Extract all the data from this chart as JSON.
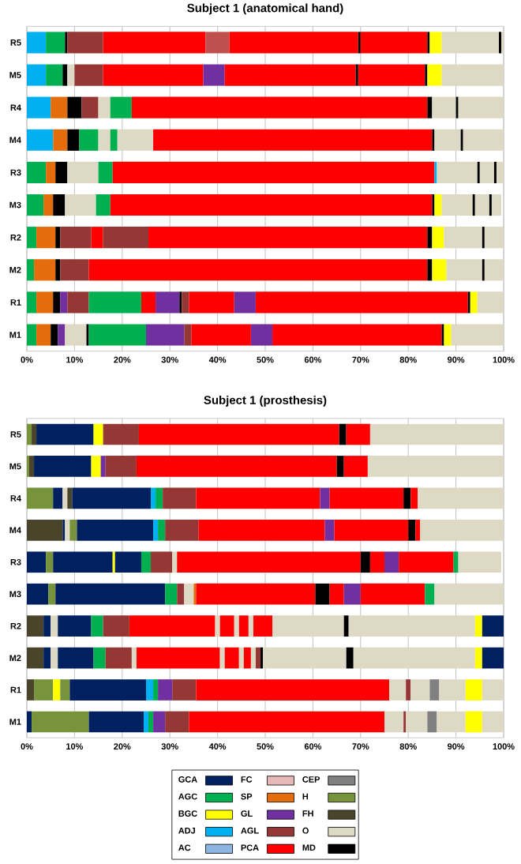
{
  "chart_data": [
    {
      "type": "bar",
      "orientation": "horizontal",
      "stacked": true,
      "title": "Subject 1 (anatomical hand)",
      "categories": [
        "R5",
        "M5",
        "R4",
        "M4",
        "R3",
        "M3",
        "R2",
        "M2",
        "R1",
        "M1"
      ],
      "xlim": [
        0,
        100
      ],
      "xticks": [
        {
          "value": 0,
          "label": "0%"
        },
        {
          "value": 10,
          "label": "10%"
        },
        {
          "value": 20,
          "label": "20%"
        },
        {
          "value": 30,
          "label": "30%"
        },
        {
          "value": 40,
          "label": "40%"
        },
        {
          "value": 50,
          "label": "50%"
        },
        {
          "value": 60,
          "label": "60%"
        },
        {
          "value": 70,
          "label": "70%"
        },
        {
          "value": 80,
          "label": "80%"
        },
        {
          "value": 90,
          "label": "90%"
        },
        {
          "value": 100,
          "label": "100%"
        }
      ],
      "grid": "x",
      "series": [
        {
          "values": [
            4,
            4,
            5,
            5.5,
            4,
            3.5,
            2,
            1.5,
            2,
            2
          ],
          "colors": [
            "#00b0f0",
            "#00b0f0",
            "#00b0f0",
            "#00b0f0",
            "#00b050",
            "#00b050",
            "#00b050",
            "#00b050",
            "#00b050",
            "#00b050"
          ]
        },
        {
          "values": [
            4,
            3.5,
            3.5,
            3,
            2,
            2,
            4,
            4.5,
            3.5,
            3
          ],
          "colors": [
            "#00b050",
            "#00b050",
            "#e46c0a",
            "#e46c0a",
            "#e46c0a",
            "#e46c0a",
            "#e46c0a",
            "#e46c0a",
            "#e46c0a",
            "#e46c0a"
          ]
        },
        {
          "values": [
            0.5,
            1,
            3,
            2.5,
            2.5,
            2.5,
            1,
            1,
            1.5,
            1.5
          ],
          "colors": [
            "#000000",
            "#000000",
            "#000000",
            "#000000",
            "#000000",
            "#000000",
            "#000000",
            "#000000",
            "#000000",
            "#000000"
          ]
        },
        {
          "values": [
            7.5,
            1.5,
            3.5,
            4,
            6.5,
            6.5,
            6.5,
            6,
            1.5,
            1.5
          ],
          "colors": [
            "#953735",
            "#ddd9c4",
            "#953735",
            "#00b050",
            "#ddd9c4",
            "#ddd9c4",
            "#953735",
            "#953735",
            "#7030a0",
            "#7030a0"
          ]
        },
        {
          "values": [
            21.5,
            6,
            2.5,
            2.5,
            3,
            3,
            2.5,
            71,
            4.5,
            4.5
          ],
          "colors": [
            "#ff0000",
            "#953735",
            "#ddd9c4",
            "#ddd9c4",
            "#00b050",
            "#00b050",
            "#ff0000",
            "#ff0000",
            "#953735",
            "#ddd9c4"
          ]
        },
        {
          "values": [
            5,
            21,
            4.5,
            1.5,
            67.5,
            67.5,
            9.5,
            1,
            11,
            0.5
          ],
          "colors": [
            "#c0504d",
            "#ff0000",
            "#00b050",
            "#00b050",
            "#ff0000",
            "#ff0000",
            "#953735",
            "#000000",
            "#00b050",
            "#000000"
          ]
        },
        {
          "values": [
            27,
            4.5,
            62,
            7.5,
            0.5,
            0.5,
            58.5,
            3,
            3,
            12
          ],
          "colors": [
            "#ff0000",
            "#7030a0",
            "#ff0000",
            "#ddd9c4",
            "#00b0f0",
            "#000000",
            "#ff0000",
            "#ffff00",
            "#ff0000",
            "#00b050"
          ]
        },
        {
          "values": [
            0.5,
            27.5,
            1,
            58.5,
            8.5,
            1.5,
            1,
            7.5,
            5,
            8
          ],
          "colors": [
            "#000000",
            "#ff0000",
            "#000000",
            "#ff0000",
            "#ddd9c4",
            "#ffff00",
            "#000000",
            "#ddd9c4",
            "#7030a0",
            "#7030a0"
          ]
        },
        {
          "values": [
            14,
            0.5,
            5,
            0.5,
            0.5,
            6.5,
            2.5,
            0.5,
            0.5,
            1.5
          ],
          "colors": [
            "#ff0000",
            "#000000",
            "#ddd9c4",
            "#000000",
            "#000000",
            "#ddd9c4",
            "#ffff00",
            "#000000",
            "#000000",
            "#953735"
          ]
        },
        {
          "values": [
            0.5,
            14,
            0.5,
            5.5,
            3,
            0.5,
            8,
            4,
            1.5,
            12.5
          ],
          "colors": [
            "#000000",
            "#ff0000",
            "#000000",
            "#ddd9c4",
            "#ddd9c4",
            "#000000",
            "#ddd9c4",
            "#ddd9c4",
            "#953735",
            "#ff0000"
          ]
        },
        {
          "values": [
            2.5,
            0.5,
            9.5,
            0.5,
            0.5,
            3,
            0.5,
            null,
            9.5,
            4.5
          ],
          "colors": [
            "#ffff00",
            "#000000",
            "#ddd9c4",
            "#000000",
            "#000000",
            "#ddd9c4",
            "#000000",
            null,
            "#ff0000",
            "#7030a0"
          ]
        },
        {
          "values": [
            12,
            3,
            null,
            8.5,
            1.5,
            0.5,
            4,
            null,
            4.5,
            35.5
          ],
          "colors": [
            "#ddd9c4",
            "#ffff00",
            null,
            "#ddd9c4",
            "#ddd9c4",
            "#000000",
            "#ddd9c4",
            null,
            "#7030a0",
            "#ff0000"
          ]
        },
        {
          "values": [
            0.5,
            13,
            null,
            null,
            null,
            2,
            null,
            null,
            44.5,
            0.5
          ],
          "colors": [
            "#000000",
            "#ddd9c4",
            null,
            null,
            null,
            "#ddd9c4",
            null,
            null,
            "#ff0000",
            "#000000"
          ]
        },
        {
          "values": [
            0.5,
            null,
            null,
            null,
            null,
            null,
            null,
            null,
            0.5,
            1.5
          ],
          "colors": [
            "#ddd9c4",
            null,
            null,
            null,
            null,
            null,
            null,
            null,
            "#000000",
            "#ffff00"
          ]
        },
        {
          "values": [
            null,
            null,
            null,
            null,
            null,
            null,
            null,
            null,
            1.5,
            11
          ],
          "colors": [
            null,
            null,
            null,
            null,
            null,
            null,
            null,
            null,
            "#ffff00",
            "#ddd9c4"
          ]
        },
        {
          "values": [
            null,
            null,
            null,
            null,
            null,
            null,
            null,
            null,
            5.5,
            null
          ],
          "colors": [
            null,
            null,
            null,
            null,
            null,
            null,
            null,
            null,
            "#ddd9c4",
            null
          ]
        }
      ]
    },
    {
      "type": "bar",
      "orientation": "horizontal",
      "stacked": true,
      "title": "Subject 1 (prosthesis)",
      "categories": [
        "R5",
        "M5",
        "R4",
        "M4",
        "R3",
        "M3",
        "R2",
        "M2",
        "R1",
        "M1"
      ],
      "xlim": [
        0,
        100
      ],
      "xticks": [
        {
          "value": 0,
          "label": "0%"
        },
        {
          "value": 10,
          "label": "10%"
        },
        {
          "value": 20,
          "label": "20%"
        },
        {
          "value": 30,
          "label": "30%"
        },
        {
          "value": 40,
          "label": "40%"
        },
        {
          "value": 50,
          "label": "50%"
        },
        {
          "value": 60,
          "label": "60%"
        },
        {
          "value": 70,
          "label": "70%"
        },
        {
          "value": 80,
          "label": "80%"
        },
        {
          "value": 90,
          "label": "90%"
        },
        {
          "value": 100,
          "label": "100%"
        }
      ],
      "grid": "x",
      "legend": "bottom",
      "series": [
        {
          "values": [
            1,
            0.5,
            5.5,
            7.5,
            4,
            4.5,
            3.5,
            3.5,
            1.5,
            1
          ],
          "colors": [
            "#77933c",
            "#77933c",
            "#77933c",
            "#4a452a",
            "#002060",
            "#002060",
            "#4a452a",
            "#4a452a",
            "#4a452a",
            "#002060"
          ]
        },
        {
          "values": [
            1,
            1,
            2,
            0.5,
            1.5,
            1.5,
            1.5,
            1.5,
            4,
            12
          ],
          "colors": [
            "#4a452a",
            "#4a452a",
            "#002060",
            "#002060",
            "#77933c",
            "#77933c",
            "#002060",
            "#002060",
            "#77933c",
            "#77933c"
          ]
        },
        {
          "values": [
            12,
            12,
            1,
            1,
            12.5,
            23,
            1.5,
            1.5,
            1.5,
            11.5
          ],
          "colors": [
            "#002060",
            "#002060",
            "#ddd9c4",
            "#ddd9c4",
            "#002060",
            "#002060",
            "#ddd9c4",
            "#ddd9c4",
            "#ffff00",
            "#002060"
          ]
        },
        {
          "values": [
            2,
            2,
            1,
            1.5,
            0.5,
            2.5,
            7,
            7.5,
            2,
            1
          ],
          "colors": [
            "#ffff00",
            "#ffff00",
            "#4a452a",
            "#77933c",
            "#ffff00",
            "#00b050",
            "#002060",
            "#002060",
            "#77933c",
            "#00b0f0"
          ]
        },
        {
          "values": [
            null,
            1,
            16.5,
            16,
            5.5,
            1.5,
            2.5,
            2.5,
            16,
            1
          ],
          "colors": [
            null,
            "#7030a0",
            "#002060",
            "#002060",
            "#002060",
            "#953735",
            "#00b050",
            "#00b050",
            "#002060",
            "#00b050"
          ]
        },
        {
          "values": [
            7.5,
            6.5,
            1,
            1,
            2,
            2,
            5.5,
            5.5,
            1.5,
            2.5
          ],
          "colors": [
            "#953735",
            "#953735",
            "#00b0f0",
            "#00b0f0",
            "#00b050",
            "#ddd9c4",
            "#953735",
            "#953735",
            "#00b0f0",
            "#7030a0"
          ]
        },
        {
          "values": [
            42,
            42,
            1.5,
            1.5,
            4.5,
            0.5,
            18,
            1,
            1,
            5
          ],
          "colors": [
            "#ff0000",
            "#ff0000",
            "#00b050",
            "#00b050",
            "#953735",
            "#e46c0a",
            "#ff0000",
            "#ddd9c4",
            "#00b050",
            "#953735"
          ]
        },
        {
          "values": [
            1.5,
            1.5,
            7,
            7,
            1,
            25,
            1,
            17.5,
            3,
            41
          ],
          "colors": [
            "#000000",
            "#000000",
            "#953735",
            "#953735",
            "#ddd9c4",
            "#ff0000",
            "#ddd9c4",
            "#ff0000",
            "#7030a0",
            "#ff0000"
          ]
        },
        {
          "values": [
            5,
            5,
            26,
            26.5,
            38.5,
            3,
            3,
            1,
            5,
            4
          ],
          "colors": [
            "#ff0000",
            "#ff0000",
            "#ff0000",
            "#ff0000",
            "#ff0000",
            "#000000",
            "#ff0000",
            "#ddd9c4",
            "#953735",
            "#ddd9c4"
          ]
        },
        {
          "values": [
            28,
            28.5,
            2,
            2,
            2,
            3,
            1,
            3,
            40.5,
            0.5
          ],
          "colors": [
            "#ddd9c4",
            "#ddd9c4",
            "#7030a0",
            "#7030a0",
            "#000000",
            "#ff0000",
            "#ddd9c4",
            "#ff0000",
            "#ff0000",
            "#953735"
          ]
        },
        {
          "values": [
            null,
            null,
            15.5,
            15.5,
            3,
            3.5,
            2,
            1,
            3.5,
            4.5
          ],
          "colors": [
            null,
            null,
            "#ff0000",
            "#ff0000",
            "#ff0000",
            "#7030a0",
            "#ff0000",
            "#ddd9c4",
            "#ddd9c4",
            "#ddd9c4"
          ]
        },
        {
          "values": [
            null,
            null,
            1.5,
            1.5,
            3,
            13.5,
            1,
            1.5,
            1,
            2
          ],
          "colors": [
            null,
            null,
            "#000000",
            "#000000",
            "#7030a0",
            "#ff0000",
            "#ddd9c4",
            "#ff0000",
            "#953735",
            "#808080"
          ]
        },
        {
          "values": [
            null,
            null,
            1.5,
            1,
            11.5,
            2,
            4,
            1,
            4,
            6
          ],
          "colors": [
            null,
            null,
            "#ff0000",
            "#ff0000",
            "#ff0000",
            "#00b050",
            "#ff0000",
            "#ddd9c4",
            "#ddd9c4",
            "#ddd9c4"
          ]
        },
        {
          "values": [
            null,
            null,
            18,
            17.5,
            1,
            14.5,
            15,
            1,
            2,
            3.5
          ],
          "colors": [
            null,
            null,
            "#ddd9c4",
            "#ddd9c4",
            "#00b050",
            "#ddd9c4",
            "#ddd9c4",
            "#953735",
            "#808080",
            "#ffff00"
          ]
        },
        {
          "values": [
            null,
            null,
            null,
            null,
            9,
            null,
            1,
            0.5,
            5.5,
            4.5
          ],
          "colors": [
            null,
            null,
            null,
            null,
            "#ddd9c4",
            null,
            "#000000",
            "#000000",
            "#ddd9c4",
            "#ddd9c4"
          ]
        },
        {
          "values": [
            null,
            null,
            null,
            null,
            null,
            null,
            26.5,
            17.5,
            3.5,
            null
          ],
          "colors": [
            null,
            null,
            null,
            null,
            null,
            null,
            "#ddd9c4",
            "#ddd9c4",
            "#ffff00",
            null
          ]
        },
        {
          "values": [
            null,
            null,
            null,
            null,
            null,
            null,
            1.5,
            1.5,
            4.5,
            null
          ],
          "colors": [
            null,
            null,
            null,
            null,
            null,
            null,
            "#ffff00",
            "#000000",
            "#ddd9c4",
            null
          ]
        },
        {
          "values": [
            null,
            null,
            null,
            null,
            null,
            null,
            4.5,
            25.5,
            null,
            null
          ],
          "colors": [
            null,
            null,
            null,
            null,
            null,
            null,
            "#002060",
            "#ddd9c4",
            null,
            null
          ]
        },
        {
          "values": [
            null,
            null,
            null,
            null,
            null,
            null,
            null,
            1.5,
            null,
            null
          ],
          "colors": [
            null,
            null,
            null,
            null,
            null,
            null,
            null,
            "#ffff00",
            null,
            null
          ]
        },
        {
          "values": [
            null,
            null,
            null,
            null,
            null,
            null,
            null,
            4.5,
            null,
            null
          ],
          "colors": [
            null,
            null,
            null,
            null,
            null,
            null,
            null,
            "#002060",
            null,
            null
          ]
        },
        {
          "name": "GCA",
          "color": "#002060",
          "values": [
            null,
            null,
            null,
            null,
            null,
            null,
            null,
            null,
            null,
            null
          ]
        },
        {
          "name": "AGC",
          "color": "#00b050",
          "values": [
            null,
            null,
            null,
            null,
            null,
            null,
            null,
            null,
            null,
            null
          ]
        },
        {
          "name": "BGC",
          "color": "#ffff00",
          "values": [
            null,
            null,
            null,
            null,
            null,
            null,
            null,
            null,
            null,
            null
          ]
        },
        {
          "name": "ADJ",
          "color": "#00b0f0",
          "values": [
            null,
            null,
            null,
            null,
            null,
            null,
            null,
            null,
            null,
            null
          ]
        },
        {
          "name": "AC",
          "color": "#8db4e2",
          "values": [
            null,
            null,
            null,
            null,
            null,
            null,
            null,
            null,
            null,
            null
          ]
        },
        {
          "name": "FC",
          "color": "#e6b8b7",
          "values": [
            null,
            null,
            null,
            null,
            null,
            null,
            null,
            null,
            null,
            null
          ]
        },
        {
          "name": "SP",
          "color": "#e46c0a",
          "values": [
            null,
            null,
            null,
            null,
            null,
            null,
            null,
            null,
            null,
            null
          ]
        },
        {
          "name": "GL",
          "color": "#7030a0",
          "values": [
            null,
            null,
            null,
            null,
            null,
            null,
            null,
            null,
            null,
            null
          ]
        },
        {
          "name": "AGL",
          "color": "#953735",
          "values": [
            null,
            null,
            null,
            null,
            null,
            null,
            null,
            null,
            null,
            null
          ]
        },
        {
          "name": "PCA",
          "color": "#ff0000",
          "values": [
            null,
            null,
            null,
            null,
            null,
            null,
            null,
            null,
            null,
            null
          ]
        },
        {
          "name": "CEP",
          "color": "#808080",
          "values": [
            null,
            null,
            null,
            null,
            null,
            null,
            null,
            null,
            null,
            null
          ]
        },
        {
          "name": "H",
          "color": "#77933c",
          "values": [
            null,
            null,
            null,
            null,
            null,
            null,
            null,
            null,
            null,
            null
          ]
        },
        {
          "name": "FH",
          "color": "#4a452a",
          "values": [
            null,
            null,
            null,
            null,
            null,
            null,
            null,
            null,
            null,
            null
          ]
        },
        {
          "name": "O",
          "color": "#ddd9c4",
          "values": [
            null,
            null,
            null,
            null,
            null,
            null,
            null,
            null,
            null,
            null
          ]
        },
        {
          "name": "MD",
          "color": "#000000",
          "values": [
            null,
            null,
            null,
            null,
            null,
            null,
            null,
            null,
            null,
            null
          ]
        }
      ]
    }
  ]
}
